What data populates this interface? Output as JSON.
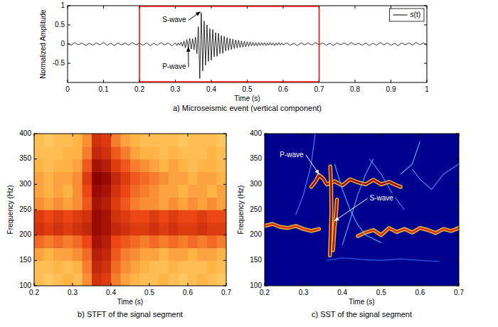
{
  "chart_data": [
    {
      "type": "line",
      "title": "a) Microseismic event (vertical component)",
      "x_label": "Time (s)",
      "y_label": "Normalized Amplitude",
      "x": [
        0,
        0.01,
        0.02,
        0.03,
        0.04,
        0.05,
        0.06,
        0.07,
        0.08,
        0.09,
        0.1,
        0.11,
        0.12,
        0.13,
        0.14,
        0.15,
        0.16,
        0.17,
        0.18,
        0.19,
        0.2,
        0.21,
        0.22,
        0.23,
        0.24,
        0.25,
        0.26,
        0.27,
        0.28,
        0.29,
        0.3,
        0.304,
        0.308,
        0.312,
        0.316,
        0.32,
        0.324,
        0.328,
        0.332,
        0.336,
        0.34,
        0.344,
        0.348,
        0.352,
        0.356,
        0.36,
        0.364,
        0.368,
        0.372,
        0.376,
        0.38,
        0.384,
        0.388,
        0.392,
        0.396,
        0.4,
        0.404,
        0.408,
        0.412,
        0.416,
        0.42,
        0.424,
        0.428,
        0.432,
        0.436,
        0.44,
        0.444,
        0.448,
        0.452,
        0.456,
        0.46,
        0.464,
        0.468,
        0.472,
        0.476,
        0.48,
        0.484,
        0.488,
        0.492,
        0.496,
        0.5,
        0.504,
        0.508,
        0.512,
        0.516,
        0.52,
        0.524,
        0.528,
        0.532,
        0.536,
        0.54,
        0.544,
        0.548,
        0.552,
        0.556,
        0.56,
        0.564,
        0.568,
        0.572,
        0.576,
        0.58,
        0.584,
        0.588,
        0.592,
        0.596,
        0.6,
        0.61,
        0.62,
        0.63,
        0.64,
        0.65,
        0.66,
        0.67,
        0.68,
        0.69,
        0.7,
        0.71,
        0.72,
        0.73,
        0.74,
        0.75,
        0.76,
        0.77,
        0.78,
        0.79,
        0.8,
        0.81,
        0.82,
        0.83,
        0.84,
        0.85,
        0.86,
        0.87,
        0.88,
        0.89,
        0.9,
        0.91,
        0.92,
        0.93,
        0.94,
        0.95,
        0.96,
        0.97,
        0.98,
        0.99,
        1
      ],
      "series": [
        {
          "name": "s(t)",
          "color": "#000000",
          "line_style": "solid",
          "values": [
            0.02,
            -0.03,
            0.04,
            -0.02,
            0.03,
            -0.04,
            0.02,
            -0.03,
            0.03,
            -0.02,
            0.04,
            -0.03,
            0.02,
            -0.04,
            0.03,
            -0.02,
            0.03,
            -0.03,
            0.04,
            -0.02,
            0.02,
            -0.03,
            0.03,
            -0.04,
            0.02,
            -0.03,
            0.04,
            -0.02,
            0.03,
            -0.04,
            0.03,
            -0.04,
            0.03,
            -0.03,
            0.05,
            -0.06,
            0.08,
            -0.1,
            0.12,
            -0.12,
            0.15,
            -0.13,
            0.14,
            -0.15,
            0.18,
            -0.25,
            0.45,
            -0.9,
            0.82,
            -0.7,
            0.6,
            -0.55,
            0.5,
            -0.45,
            0.4,
            -0.42,
            0.38,
            -0.33,
            0.3,
            -0.32,
            0.28,
            -0.25,
            0.22,
            -0.24,
            0.2,
            -0.18,
            0.17,
            -0.16,
            0.15,
            -0.14,
            0.13,
            -0.12,
            0.11,
            -0.1,
            0.1,
            -0.09,
            0.08,
            -0.08,
            0.07,
            -0.07,
            0.06,
            -0.06,
            0.06,
            -0.05,
            0.05,
            -0.05,
            0.04,
            -0.05,
            0.04,
            -0.04,
            0.04,
            -0.03,
            0.04,
            -0.04,
            0.03,
            -0.03,
            0.04,
            -0.03,
            0.03,
            -0.04,
            0.03,
            -0.03,
            0.04,
            -0.03,
            0.03,
            -0.02,
            0.03,
            -0.03,
            0.02,
            -0.04,
            0.03,
            -0.02,
            0.03,
            -0.03,
            0.04,
            -0.02,
            0.03,
            -0.03,
            0.02,
            -0.04,
            0.03,
            -0.02,
            0.03,
            -0.03,
            0.04,
            -0.02,
            0.02,
            -0.03,
            0.03,
            -0.04,
            0.02,
            -0.03,
            0.04,
            -0.02,
            0.03,
            -0.03,
            0.02,
            -0.04,
            0.03,
            -0.02,
            0.03,
            -0.03,
            0.04,
            -0.02,
            0.03,
            -0.03
          ]
        }
      ],
      "xlim": [
        0,
        1
      ],
      "ylim": [
        -1,
        1
      ],
      "xticks": [
        0,
        0.1,
        0.2,
        0.3,
        0.4,
        0.5,
        0.6,
        0.7,
        0.8,
        0.9,
        1
      ],
      "yticks": [
        -0.5,
        0,
        0.5,
        1
      ],
      "grid": false,
      "legend": "top-right",
      "highlight": {
        "x": [
          0.2,
          0.7
        ],
        "color": "#ff0000"
      },
      "annotations": [
        {
          "text": "S-wave",
          "x": 0.33,
          "y": 0.62,
          "arrow_x": 0.369,
          "arrow_y": 0.84,
          "color": "#000000"
        },
        {
          "text": "P-wave",
          "x": 0.33,
          "y": -0.6,
          "arrow_x": 0.336,
          "arrow_y": -0.08,
          "color": "#000000"
        }
      ]
    },
    {
      "type": "heatmap",
      "title": "b) STFT of the signal segment",
      "x_label": "Time (s)",
      "y_label": "Frequency (Hz)",
      "x": [
        0.2125,
        0.2375,
        0.2625,
        0.2875,
        0.3125,
        0.3375,
        0.3625,
        0.3875,
        0.4125,
        0.4375,
        0.4625,
        0.4875,
        0.5125,
        0.5375,
        0.5625,
        0.5875,
        0.6125,
        0.6375,
        0.6625,
        0.6875
      ],
      "y": [
        112.5,
        137.5,
        162.5,
        187.5,
        212.5,
        237.5,
        262.5,
        287.5,
        312.5,
        337.5,
        362.5,
        387.5
      ],
      "cells": [
        [
          0.3,
          0.25,
          0.3,
          0.35,
          0.3,
          0.45,
          0.75,
          0.7,
          0.5,
          0.4,
          0.35,
          0.3,
          0.3,
          0.35,
          0.3,
          0.25,
          0.3,
          0.35,
          0.3,
          0.25
        ],
        [
          0.3,
          0.3,
          0.35,
          0.3,
          0.35,
          0.5,
          0.8,
          0.75,
          0.55,
          0.45,
          0.4,
          0.35,
          0.3,
          0.3,
          0.35,
          0.3,
          0.3,
          0.3,
          0.35,
          0.3
        ],
        [
          0.4,
          0.35,
          0.4,
          0.4,
          0.45,
          0.55,
          0.85,
          0.8,
          0.6,
          0.5,
          0.45,
          0.4,
          0.4,
          0.35,
          0.4,
          0.4,
          0.35,
          0.4,
          0.4,
          0.35
        ],
        [
          0.55,
          0.5,
          0.55,
          0.5,
          0.55,
          0.65,
          0.9,
          0.85,
          0.65,
          0.6,
          0.55,
          0.5,
          0.55,
          0.5,
          0.55,
          0.5,
          0.55,
          0.5,
          0.55,
          0.5
        ],
        [
          0.75,
          0.7,
          0.75,
          0.7,
          0.75,
          0.8,
          0.95,
          0.9,
          0.8,
          0.75,
          0.7,
          0.7,
          0.75,
          0.7,
          0.75,
          0.7,
          0.7,
          0.75,
          0.7,
          0.7
        ],
        [
          0.7,
          0.65,
          0.7,
          0.65,
          0.7,
          0.75,
          0.95,
          0.9,
          0.75,
          0.7,
          0.65,
          0.65,
          0.7,
          0.65,
          0.7,
          0.65,
          0.65,
          0.7,
          0.65,
          0.65
        ],
        [
          0.45,
          0.4,
          0.45,
          0.4,
          0.45,
          0.6,
          0.9,
          0.85,
          0.7,
          0.6,
          0.5,
          0.45,
          0.45,
          0.4,
          0.45,
          0.4,
          0.45,
          0.4,
          0.45,
          0.4
        ],
        [
          0.4,
          0.35,
          0.4,
          0.35,
          0.45,
          0.65,
          0.95,
          0.9,
          0.75,
          0.65,
          0.55,
          0.5,
          0.45,
          0.4,
          0.4,
          0.35,
          0.4,
          0.4,
          0.35,
          0.4
        ],
        [
          0.4,
          0.35,
          0.4,
          0.4,
          0.45,
          0.7,
          1.0,
          0.95,
          0.8,
          0.7,
          0.6,
          0.55,
          0.5,
          0.45,
          0.4,
          0.4,
          0.35,
          0.4,
          0.4,
          0.35
        ],
        [
          0.35,
          0.3,
          0.35,
          0.35,
          0.4,
          0.6,
          0.9,
          0.85,
          0.7,
          0.6,
          0.5,
          0.45,
          0.4,
          0.35,
          0.4,
          0.35,
          0.3,
          0.35,
          0.35,
          0.3
        ],
        [
          0.3,
          0.3,
          0.3,
          0.35,
          0.35,
          0.5,
          0.8,
          0.75,
          0.6,
          0.5,
          0.4,
          0.35,
          0.35,
          0.3,
          0.35,
          0.3,
          0.3,
          0.3,
          0.35,
          0.3
        ],
        [
          0.3,
          0.25,
          0.3,
          0.3,
          0.35,
          0.45,
          0.75,
          0.7,
          0.5,
          0.4,
          0.35,
          0.3,
          0.3,
          0.3,
          0.3,
          0.25,
          0.3,
          0.3,
          0.3,
          0.25
        ]
      ],
      "zlim": [
        0,
        1
      ],
      "xlim": [
        0.2,
        0.7
      ],
      "ylim": [
        100,
        400
      ],
      "xticks": [
        0.2,
        0.3,
        0.4,
        0.5,
        0.6,
        0.7
      ],
      "yticks": [
        100,
        150,
        200,
        250,
        300,
        350,
        400
      ],
      "grid": false
    },
    {
      "type": "ridge",
      "title": "c) SST of the signal segment",
      "x_label": "Time (s)",
      "y_label": "Frequency (Hz)",
      "series": [
        {
          "color": "#e03010",
          "line_style": "thick",
          "x": [
            0.2,
            0.22,
            0.24,
            0.26,
            0.28,
            0.3,
            0.32,
            0.34,
            0.36,
            0.44,
            0.46,
            0.48,
            0.5,
            0.52,
            0.54,
            0.56,
            0.58,
            0.6,
            0.62,
            0.64,
            0.66,
            0.68,
            0.7
          ],
          "values": [
            218,
            222,
            216,
            214,
            218,
            212,
            208,
            212,
            null,
            198,
            205,
            210,
            200,
            214,
            206,
            212,
            205,
            214,
            210,
            204,
            212,
            208,
            214
          ]
        },
        {
          "color": "#b00000",
          "line_style": "thick",
          "x": [
            0.32,
            0.33,
            0.34,
            0.35,
            0.36,
            0.38,
            0.4,
            0.42,
            0.44,
            0.46,
            0.48,
            0.5,
            0.52,
            0.54,
            0.55
          ],
          "values": [
            295,
            305,
            318,
            312,
            300,
            306,
            298,
            310,
            304,
            300,
            309,
            300,
            305,
            298,
            295
          ]
        },
        {
          "color": "#a00000",
          "line_style": "thick",
          "x": [
            0.368,
            0.37,
            0.372,
            0.371,
            0.369
          ],
          "values": [
            160,
            200,
            250,
            300,
            335
          ]
        },
        {
          "color": "#c01000",
          "line_style": "thick",
          "x": [
            0.376,
            0.38,
            0.384,
            0.386
          ],
          "values": [
            170,
            215,
            245,
            270
          ]
        },
        {
          "color": "#40c8ff",
          "line_style": "thin",
          "x": [
            0.38,
            0.4,
            0.42,
            0.44,
            0.46,
            0.5
          ],
          "values": [
            340,
            290,
            250,
            220,
            200,
            185
          ]
        },
        {
          "color": "#40c8ff",
          "line_style": "thin",
          "x": [
            0.4,
            0.42,
            0.44,
            0.46,
            0.48
          ],
          "values": [
            180,
            230,
            280,
            320,
            350
          ]
        },
        {
          "color": "#3aa0ff",
          "line_style": "thin",
          "x": [
            0.47,
            0.5,
            0.53,
            0.56
          ],
          "values": [
            350,
            320,
            280,
            250
          ]
        },
        {
          "color": "#2a70ff",
          "line_style": "thin",
          "x": [
            0.36,
            0.4,
            0.45,
            0.5,
            0.55,
            0.6,
            0.65
          ],
          "values": [
            150,
            155,
            152,
            150,
            153,
            150,
            148
          ]
        },
        {
          "color": "#3aa0ff",
          "line_style": "thin",
          "x": [
            0.28,
            0.3,
            0.32,
            0.33
          ],
          "values": [
            240,
            280,
            340,
            400
          ]
        },
        {
          "color": "#3aa0ff",
          "line_style": "thin",
          "x": [
            0.58,
            0.6,
            0.63,
            0.66,
            0.7
          ],
          "values": [
            330,
            310,
            290,
            320,
            340
          ]
        },
        {
          "color": "#40c8ff",
          "line_style": "thin",
          "x": [
            0.55,
            0.58,
            0.6
          ],
          "values": [
            320,
            340,
            385
          ]
        }
      ],
      "xlim": [
        0.2,
        0.7
      ],
      "ylim": [
        100,
        400
      ],
      "xticks": [
        0.2,
        0.3,
        0.4,
        0.5,
        0.6,
        0.7
      ],
      "yticks": [
        100,
        150,
        200,
        250,
        300,
        350,
        400
      ],
      "grid": false,
      "annotations": [
        {
          "text": "P-wave",
          "x": 0.3,
          "y": 358,
          "arrow_x": 0.34,
          "arrow_y": 320,
          "color": "#ffffff"
        },
        {
          "text": "S-wave",
          "x": 0.47,
          "y": 272,
          "arrow_x": 0.38,
          "arrow_y": 228,
          "color": "#ffffff"
        }
      ]
    }
  ]
}
